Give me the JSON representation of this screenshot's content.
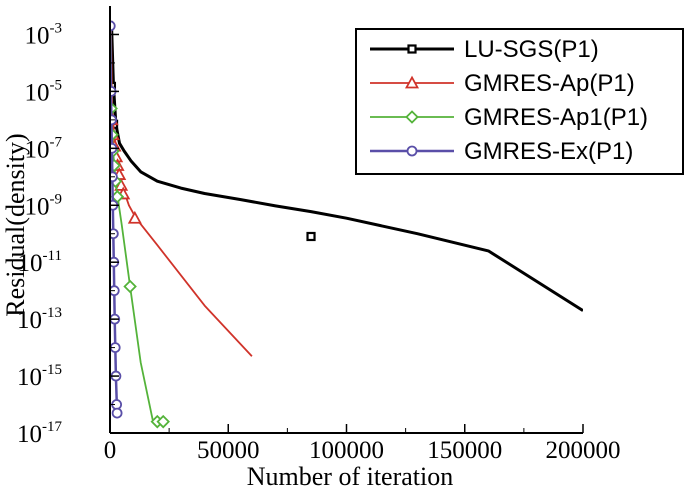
{
  "chart_data": {
    "type": "line",
    "xlabel": "Number of iteration",
    "ylabel": "Residual(density)",
    "xlim": [
      0,
      200000
    ],
    "ylim": [
      1e-17,
      0.01
    ],
    "y_scale": "log",
    "grid": false,
    "legend_position": "top-right",
    "x_ticks": [
      "0",
      "50000",
      "100000",
      "150000",
      "200000"
    ],
    "y_ticks": [
      {
        "base": "10",
        "exp": "-3",
        "value": 0.001
      },
      {
        "base": "10",
        "exp": "-5",
        "value": 1e-05
      },
      {
        "base": "10",
        "exp": "-7",
        "value": 1e-07
      },
      {
        "base": "10",
        "exp": "-9",
        "value": 1e-09
      },
      {
        "base": "10",
        "exp": "-11",
        "value": 1e-11
      },
      {
        "base": "10",
        "exp": "-13",
        "value": 1e-13
      },
      {
        "base": "10",
        "exp": "-15",
        "value": 1e-15
      },
      {
        "base": "10",
        "exp": "-17",
        "value": 1e-17
      }
    ],
    "series": [
      {
        "name": "LU-SGS(P1)",
        "color": "#000000",
        "marker": "square",
        "line_width": 3,
        "x": [
          600,
          1500,
          2500,
          4000,
          6000,
          9000,
          13000,
          20000,
          30000,
          40000,
          55000,
          70000,
          85000,
          100000,
          130000,
          160000,
          200000
        ],
        "y": [
          0.003,
          1.5e-05,
          7e-07,
          1.5e-07,
          8e-08,
          3.5e-08,
          1.5e-08,
          7e-09,
          4e-09,
          2.6e-09,
          1.6e-09,
          9.5e-10,
          6e-10,
          3.5e-10,
          1e-10,
          2.5e-11,
          2e-13
        ],
        "markers": [
          {
            "x": 600,
            "y": 1.5e-05
          },
          {
            "x": 1500,
            "y": 7e-07
          },
          {
            "x": 85000,
            "y": 8e-11
          }
        ]
      },
      {
        "name": "GMRES-Ap(P1)",
        "color": "#d0332a",
        "marker": "triangle",
        "line_width": 1.8,
        "x": [
          400,
          800,
          1200,
          1800,
          2500,
          3200,
          4000,
          5000,
          6000,
          8000,
          11000,
          20000,
          40000,
          60000
        ],
        "y": [
          0.003,
          6e-06,
          1e-06,
          3e-07,
          1.2e-07,
          4e-08,
          1.5e-08,
          6e-09,
          3e-09,
          1e-09,
          3.5e-10,
          4e-11,
          3e-13,
          5e-15
        ],
        "markers": [
          {
            "x": 700,
            "y": 1e-06
          },
          {
            "x": 1200,
            "y": 3e-07
          },
          {
            "x": 1900,
            "y": 1.2e-07
          },
          {
            "x": 2600,
            "y": 5e-08
          },
          {
            "x": 3200,
            "y": 2.5e-08
          },
          {
            "x": 3900,
            "y": 1.2e-08
          },
          {
            "x": 4700,
            "y": 5e-09
          },
          {
            "x": 5600,
            "y": 2.5e-09
          },
          {
            "x": 10500,
            "y": 3.5e-10
          }
        ]
      },
      {
        "name": "GMRES-Ap1(P1)",
        "color": "#54b33a",
        "marker": "diamond",
        "line_width": 1.8,
        "x": [
          300,
          600,
          900,
          1300,
          1800,
          2400,
          3200,
          5000,
          8500,
          13000,
          18000,
          20000,
          22500
        ],
        "y": [
          0.003,
          3e-06,
          3e-07,
          8e-08,
          2.5e-08,
          7e-09,
          2e-09,
          2e-10,
          1.4e-12,
          3e-15,
          3e-17,
          2.5e-17,
          2.5e-17
        ],
        "markers": [
          {
            "x": 500,
            "y": 2.5e-06
          },
          {
            "x": 850,
            "y": 3e-07
          },
          {
            "x": 1250,
            "y": 8e-08
          },
          {
            "x": 1700,
            "y": 2.5e-08
          },
          {
            "x": 2300,
            "y": 7e-09
          },
          {
            "x": 3100,
            "y": 2e-09
          },
          {
            "x": 8500,
            "y": 1.4e-12
          },
          {
            "x": 20000,
            "y": 2.5e-17
          },
          {
            "x": 22500,
            "y": 2.5e-17
          }
        ]
      },
      {
        "name": "GMRES-Ex(P1)",
        "color": "#5a4fa8",
        "marker": "circle",
        "line_width": 2.5,
        "x": [
          100,
          400,
          800,
          1200,
          1600,
          2000,
          2500,
          3000
        ],
        "y": [
          0.002,
          1e-05,
          1e-07,
          1e-09,
          1e-11,
          1e-13,
          1e-15,
          5e-17
        ],
        "markers": [
          {
            "x": 100,
            "y": 0.002
          },
          {
            "x": 450,
            "y": 1e-05
          },
          {
            "x": 650,
            "y": 1e-06
          },
          {
            "x": 800,
            "y": 1e-07
          },
          {
            "x": 1000,
            "y": 1e-08
          },
          {
            "x": 1200,
            "y": 1e-09
          },
          {
            "x": 1400,
            "y": 1e-10
          },
          {
            "x": 1600,
            "y": 1e-11
          },
          {
            "x": 1800,
            "y": 1e-12
          },
          {
            "x": 2000,
            "y": 1e-13
          },
          {
            "x": 2200,
            "y": 1e-14
          },
          {
            "x": 2500,
            "y": 1e-15
          },
          {
            "x": 2800,
            "y": 1e-16
          },
          {
            "x": 3000,
            "y": 5e-17
          }
        ]
      }
    ]
  }
}
